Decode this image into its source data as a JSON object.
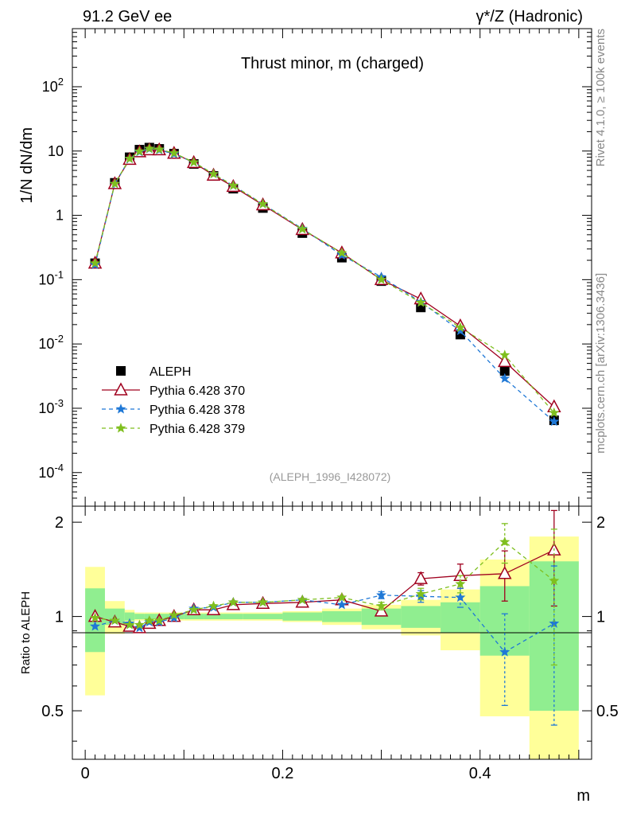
{
  "header": {
    "left_title": "91.2 GeV ee",
    "right_title": "γ*/Z (Hadronic)"
  },
  "side_labels": {
    "rivet": "Rivet 4.1.0, ≥ 100k events",
    "mcplots": "mcplots.cern.ch [arXiv:1306.3436]"
  },
  "colors": {
    "aleph": "#000000",
    "p370": "#a0001e",
    "p378": "#1f78d6",
    "p379": "#7fbf1f",
    "band_green": "#90ee90",
    "band_yellow": "#ffff99"
  },
  "chart_data": [
    {
      "type": "line",
      "title": "Thrust minor, m (charged)",
      "subtitle": "(ALEPH_1996_I428072)",
      "ylabel": "1/N  dN/dm",
      "xlabel": "m",
      "yscale": "log",
      "xlim": [
        -0.013,
        0.513
      ],
      "ylim": [
        3e-05,
        800
      ],
      "legend_position": "lower-left",
      "y_tick_labels": [
        "10^-4",
        "10^-3",
        "10^-2",
        "10^-1",
        "1",
        "10",
        "10^2"
      ],
      "x": [
        0.01,
        0.03,
        0.045,
        0.055,
        0.065,
        0.075,
        0.09,
        0.11,
        0.13,
        0.15,
        0.18,
        0.22,
        0.26,
        0.3,
        0.34,
        0.38,
        0.425,
        0.475
      ],
      "series": [
        {
          "name": "ALEPH",
          "key": "aleph",
          "marker": "square",
          "values": [
            0.18,
            3.2,
            8.0,
            10.5,
            11.3,
            10.8,
            9.1,
            6.3,
            4.1,
            2.6,
            1.3,
            0.53,
            0.22,
            0.095,
            0.037,
            0.014,
            0.0038,
            0.00065
          ]
        },
        {
          "name": "Pythia 6.428 370",
          "key": "p370",
          "marker": "triangle",
          "dash": "solid",
          "values": [
            0.18,
            3.1,
            7.4,
            9.7,
            10.4,
            10.4,
            9.2,
            6.6,
            4.2,
            2.8,
            1.45,
            0.6,
            0.26,
            0.1,
            0.05,
            0.019,
            0.0053,
            0.00105
          ]
        },
        {
          "name": "Pythia 6.428 378",
          "key": "p378",
          "marker": "star",
          "dash": "dashed",
          "values": [
            0.17,
            3.1,
            7.6,
            9.7,
            10.8,
            10.4,
            9.0,
            6.7,
            4.4,
            2.9,
            1.5,
            0.62,
            0.24,
            0.11,
            0.045,
            0.016,
            0.0029,
            0.00062
          ]
        },
        {
          "name": "Pythia 6.428 379",
          "key": "p379",
          "marker": "star",
          "dash": "dashed",
          "values": [
            0.18,
            3.1,
            7.6,
            9.9,
            10.9,
            10.6,
            9.3,
            6.7,
            4.4,
            2.9,
            1.5,
            0.61,
            0.26,
            0.1,
            0.044,
            0.018,
            0.0067,
            0.00085
          ]
        }
      ]
    },
    {
      "type": "line",
      "ylabel": "Ratio to ALEPH",
      "xlabel": "m",
      "xlim": [
        -0.013,
        0.513
      ],
      "ylim": [
        0.35,
        2.25
      ],
      "y_tick_labels": [
        "0.5",
        "1",
        "2"
      ],
      "x_tick_labels": [
        "0",
        "0.2",
        "0.4"
      ],
      "bin_edges": [
        0.0,
        0.02,
        0.04,
        0.05,
        0.06,
        0.07,
        0.08,
        0.1,
        0.12,
        0.14,
        0.16,
        0.2,
        0.24,
        0.28,
        0.32,
        0.36,
        0.4,
        0.45,
        0.5
      ],
      "band_green": [
        0.23,
        0.06,
        0.03,
        0.02,
        0.02,
        0.02,
        0.02,
        0.02,
        0.02,
        0.02,
        0.02,
        0.03,
        0.04,
        0.06,
        0.08,
        0.11,
        0.25,
        0.5
      ],
      "band_yellow": [
        0.44,
        0.12,
        0.05,
        0.03,
        0.03,
        0.03,
        0.03,
        0.03,
        0.03,
        0.03,
        0.03,
        0.04,
        0.06,
        0.09,
        0.13,
        0.22,
        0.52,
        0.8
      ],
      "x": [
        0.01,
        0.03,
        0.045,
        0.055,
        0.065,
        0.075,
        0.09,
        0.11,
        0.13,
        0.15,
        0.18,
        0.22,
        0.26,
        0.3,
        0.34,
        0.38,
        0.425,
        0.475
      ],
      "series": [
        {
          "name": "Pythia 6.428 370",
          "key": "p370",
          "marker": "triangle",
          "dash": "solid",
          "values": [
            1.0,
            0.96,
            0.93,
            0.92,
            0.95,
            0.97,
            1.0,
            1.05,
            1.05,
            1.09,
            1.1,
            1.11,
            1.13,
            1.04,
            1.32,
            1.35,
            1.37,
            1.63
          ],
          "errors": [
            0.01,
            0.01,
            0.01,
            0.01,
            0.01,
            0.01,
            0.01,
            0.01,
            0.01,
            0.01,
            0.01,
            0.01,
            0.02,
            0.02,
            0.06,
            0.12,
            0.25,
            0.55
          ]
        },
        {
          "name": "Pythia 6.428 378",
          "key": "p378",
          "marker": "star",
          "dash": "dashed",
          "values": [
            0.93,
            0.97,
            0.95,
            0.92,
            0.96,
            0.96,
            0.99,
            1.06,
            1.07,
            1.11,
            1.11,
            1.13,
            1.09,
            1.17,
            1.16,
            1.15,
            0.77,
            0.95
          ],
          "errors": [
            0.01,
            0.01,
            0.01,
            0.01,
            0.01,
            0.01,
            0.01,
            0.01,
            0.01,
            0.01,
            0.01,
            0.01,
            0.02,
            0.03,
            0.05,
            0.08,
            0.25,
            0.5
          ]
        },
        {
          "name": "Pythia 6.428 379",
          "key": "p379",
          "marker": "star",
          "dash": "dashed",
          "values": [
            0.99,
            0.97,
            0.94,
            0.94,
            0.97,
            0.97,
            1.01,
            1.05,
            1.08,
            1.11,
            1.11,
            1.13,
            1.15,
            1.08,
            1.18,
            1.27,
            1.73,
            1.3
          ],
          "errors": [
            0.01,
            0.01,
            0.01,
            0.01,
            0.01,
            0.01,
            0.01,
            0.01,
            0.01,
            0.01,
            0.01,
            0.01,
            0.02,
            0.03,
            0.05,
            0.08,
            0.25,
            0.6
          ]
        }
      ]
    }
  ]
}
